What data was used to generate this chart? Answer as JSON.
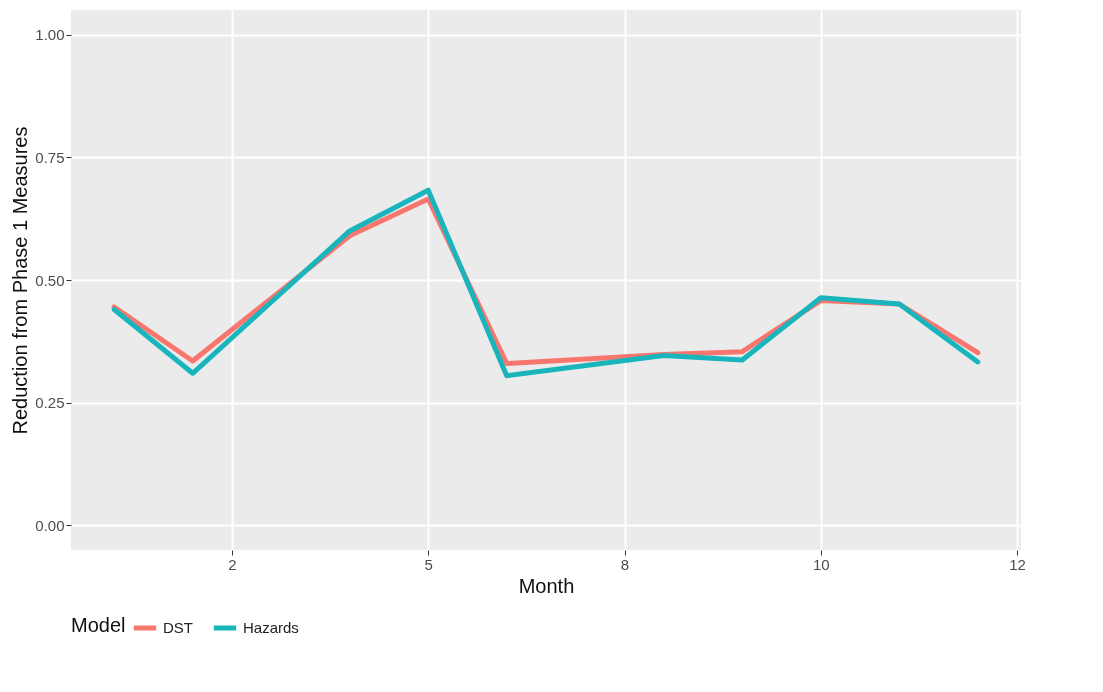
{
  "chart_data": {
    "type": "line",
    "xlabel": "Month",
    "ylabel": "Reduction from Phase 1 Measures",
    "legend_title": "Model",
    "categories": [
      null,
      null,
      null,
      "2",
      null,
      null,
      null,
      null,
      "5",
      null,
      null,
      null,
      null,
      "8",
      null,
      null,
      null,
      null,
      "10",
      null,
      null,
      null,
      null,
      "12"
    ],
    "series": [
      {
        "name": "DST",
        "color": "#f8766d",
        "values": [
          0.445,
          null,
          0.335,
          null,
          null,
          null,
          0.59,
          null,
          0.665,
          null,
          0.33,
          null,
          null,
          null,
          0.348,
          null,
          0.354,
          null,
          0.458,
          null,
          0.451,
          null,
          0.352,
          null
        ]
      },
      {
        "name": "Hazards",
        "color": "#19b5bd",
        "values": [
          0.44,
          null,
          0.31,
          null,
          null,
          null,
          0.6,
          null,
          0.683,
          null,
          0.305,
          null,
          null,
          null,
          0.346,
          null,
          0.337,
          null,
          0.464,
          null,
          0.451,
          null,
          0.333,
          null
        ]
      }
    ],
    "ylim": [
      -0.05,
      1.05
    ],
    "yticks": [
      {
        "value": 0,
        "label": "0.00"
      },
      {
        "value": 0.25,
        "label": "0.25"
      },
      {
        "value": 0.5,
        "label": "0.50"
      },
      {
        "value": 0.75,
        "label": "0.75"
      },
      {
        "value": 1,
        "label": "1.00"
      }
    ],
    "grid": true,
    "legend": "bottom",
    "line_style": "solid",
    "marker": "none"
  }
}
